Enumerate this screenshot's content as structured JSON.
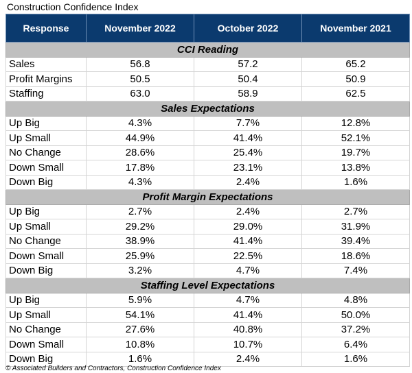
{
  "title": "Construction Confidence Index",
  "headers": [
    "Response",
    "November 2022",
    "October 2022",
    "November 2021"
  ],
  "sections": [
    {
      "name": "CCI Reading",
      "rows": [
        {
          "label": "Sales",
          "values": [
            "56.8",
            "57.2",
            "65.2"
          ]
        },
        {
          "label": "Profit Margins",
          "values": [
            "50.5",
            "50.4",
            "50.9"
          ]
        },
        {
          "label": "Staffing",
          "values": [
            "63.0",
            "58.9",
            "62.5"
          ]
        }
      ]
    },
    {
      "name": "Sales Expectations",
      "rows": [
        {
          "label": "Up Big",
          "values": [
            "4.3%",
            "7.7%",
            "12.8%"
          ]
        },
        {
          "label": "Up Small",
          "values": [
            "44.9%",
            "41.4%",
            "52.1%"
          ]
        },
        {
          "label": "No Change",
          "values": [
            "28.6%",
            "25.4%",
            "19.7%"
          ]
        },
        {
          "label": "Down Small",
          "values": [
            "17.8%",
            "23.1%",
            "13.8%"
          ]
        },
        {
          "label": "Down Big",
          "values": [
            "4.3%",
            "2.4%",
            "1.6%"
          ]
        }
      ]
    },
    {
      "name": "Profit Margin Expectations",
      "rows": [
        {
          "label": "Up Big",
          "values": [
            "2.7%",
            "2.4%",
            "2.7%"
          ]
        },
        {
          "label": "Up Small",
          "values": [
            "29.2%",
            "29.0%",
            "31.9%"
          ]
        },
        {
          "label": "No Change",
          "values": [
            "38.9%",
            "41.4%",
            "39.4%"
          ]
        },
        {
          "label": "Down Small",
          "values": [
            "25.9%",
            "22.5%",
            "18.6%"
          ]
        },
        {
          "label": "Down Big",
          "values": [
            "3.2%",
            "4.7%",
            "7.4%"
          ]
        }
      ]
    },
    {
      "name": "Staffing Level Expectations",
      "rows": [
        {
          "label": "Up Big",
          "values": [
            "5.9%",
            "4.7%",
            "4.8%"
          ]
        },
        {
          "label": "Up Small",
          "values": [
            "54.1%",
            "41.4%",
            "50.0%"
          ]
        },
        {
          "label": "No Change",
          "values": [
            "27.6%",
            "40.8%",
            "37.2%"
          ]
        },
        {
          "label": "Down Small",
          "values": [
            "10.8%",
            "10.7%",
            "6.4%"
          ]
        },
        {
          "label": "Down Big",
          "values": [
            "1.6%",
            "2.4%",
            "1.6%"
          ]
        }
      ]
    }
  ],
  "footer": "© Associated Builders and Contractors, Construction Confidence Index",
  "colors": {
    "header_bg": "#0b3a6e",
    "section_bg": "#bfbfbf"
  }
}
